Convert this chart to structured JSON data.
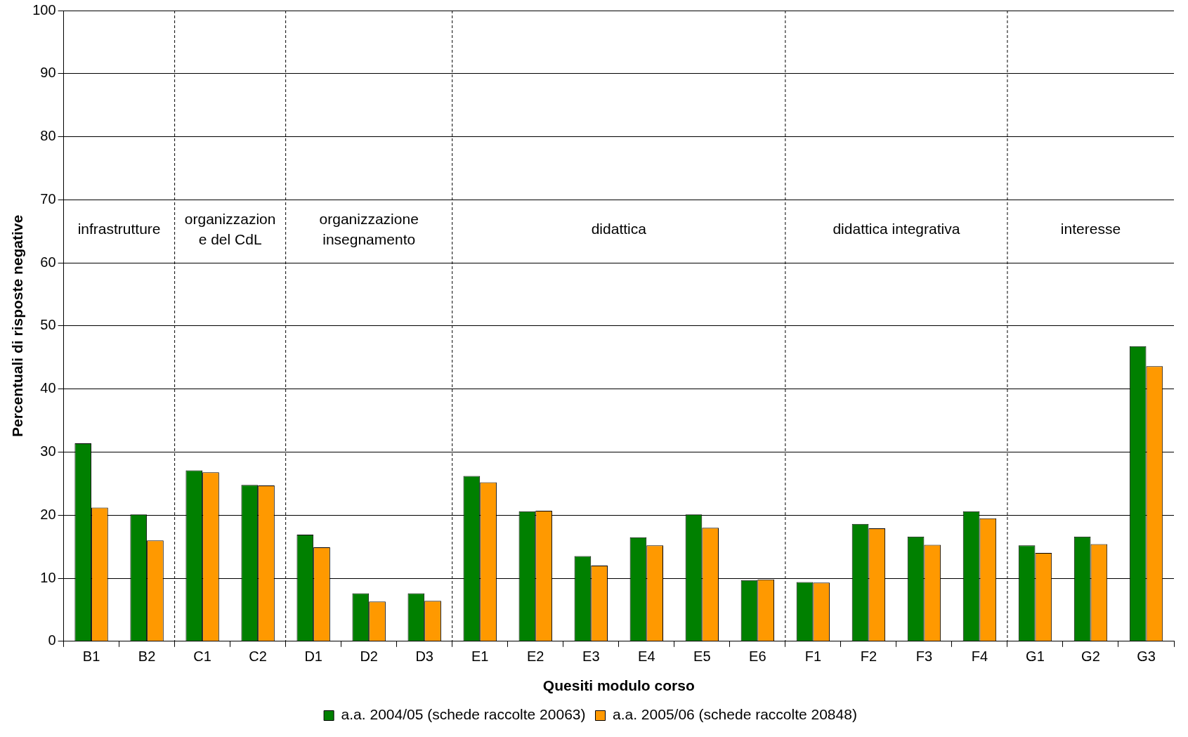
{
  "chart_data": {
    "type": "bar",
    "xlabel": "Quesiti modulo corso",
    "ylabel": "Percentuali di risposte negative",
    "categories": [
      "B1",
      "B2",
      "C1",
      "C2",
      "D1",
      "D2",
      "D3",
      "E1",
      "E2",
      "E3",
      "E4",
      "E5",
      "E6",
      "F1",
      "F2",
      "F3",
      "F4",
      "G1",
      "G2",
      "G3"
    ],
    "series": [
      {
        "name": "a.a. 2004/05 (schede raccolte 20063)",
        "color": "#008000",
        "values": [
          31.4,
          20.1,
          27.1,
          24.8,
          16.9,
          7.6,
          7.6,
          26.2,
          20.6,
          13.5,
          16.5,
          20.1,
          9.7,
          9.4,
          18.6,
          16.6,
          20.6,
          15.2,
          16.6,
          46.8
        ]
      },
      {
        "name": "a.a. 2005/06 (schede raccolte 20848)",
        "color": "#ff9900",
        "values": [
          21.2,
          16.0,
          26.8,
          24.7,
          14.9,
          6.3,
          6.4,
          25.2,
          20.7,
          12.0,
          15.2,
          18.0,
          9.8,
          9.3,
          17.9,
          15.3,
          19.5,
          14.0,
          15.4,
          43.6
        ]
      }
    ],
    "ylim": [
      0,
      100
    ],
    "yticks": [
      0,
      10,
      20,
      30,
      40,
      50,
      60,
      70,
      80,
      90,
      100
    ],
    "grid": "y",
    "legend": "bottom",
    "annotations": [
      "infrastrutture",
      "organizzazion\ne del CdL",
      "organizzazione\ninsegnamento",
      "didattica",
      "didattica integrativa",
      "interesse"
    ]
  }
}
